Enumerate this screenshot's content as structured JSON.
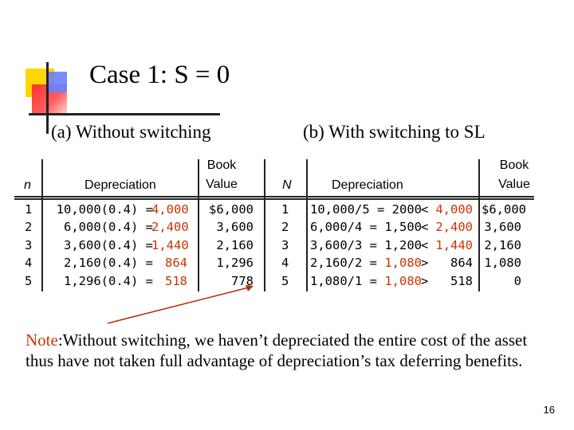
{
  "title": "Case 1: S = 0",
  "subtitle_a": "(a) Without switching",
  "subtitle_b": "(b) With switching to SL",
  "table_a": {
    "headers": {
      "n": "n",
      "depreciation": "Depreciation",
      "book_line1": "Book",
      "book_line2": "Value"
    },
    "n": [
      "1",
      "2",
      "3",
      "4",
      "5"
    ],
    "calc": [
      "10,000(0.4) =",
      "6,000(0.4) =",
      "3,600(0.4) =",
      "2,160(0.4) =",
      "1,296(0.4) ="
    ],
    "dep": [
      "4,000",
      "2,400",
      "1,440",
      "864",
      "518"
    ],
    "book": [
      "$6,000",
      "3,600",
      "2,160",
      "1,296",
      "778"
    ]
  },
  "table_b": {
    "headers": {
      "n": "N",
      "depreciation": "Depreciation",
      "book_line1": "Book",
      "book_line2": "Value"
    },
    "n": [
      "1",
      "2",
      "3",
      "4",
      "5"
    ],
    "calc": [
      "10,000/5 = 2000",
      "6,000/4 = 1,500",
      "3,600/3 = 1,200",
      "2,160/2 =",
      "1,080/1 ="
    ],
    "calc_red": [
      "",
      "",
      "",
      "1,080",
      "1,080"
    ],
    "sym": [
      "<",
      "<",
      "<",
      ">",
      ">"
    ],
    "cmp": [
      "4,000",
      "2,400",
      "1,440",
      "864",
      "518"
    ],
    "book": [
      "$6,000",
      "3,600",
      "2,160",
      "1,080",
      "0"
    ]
  },
  "note": {
    "label": "Note",
    "text": ":Without switching, we haven’t depreciated the entire cost of the asset thus have not taken full advantage of depreciation’s tax deferring benefits."
  },
  "page_number": "16",
  "colors": {
    "accent_red": "#cc3300",
    "rule": "#222222"
  }
}
